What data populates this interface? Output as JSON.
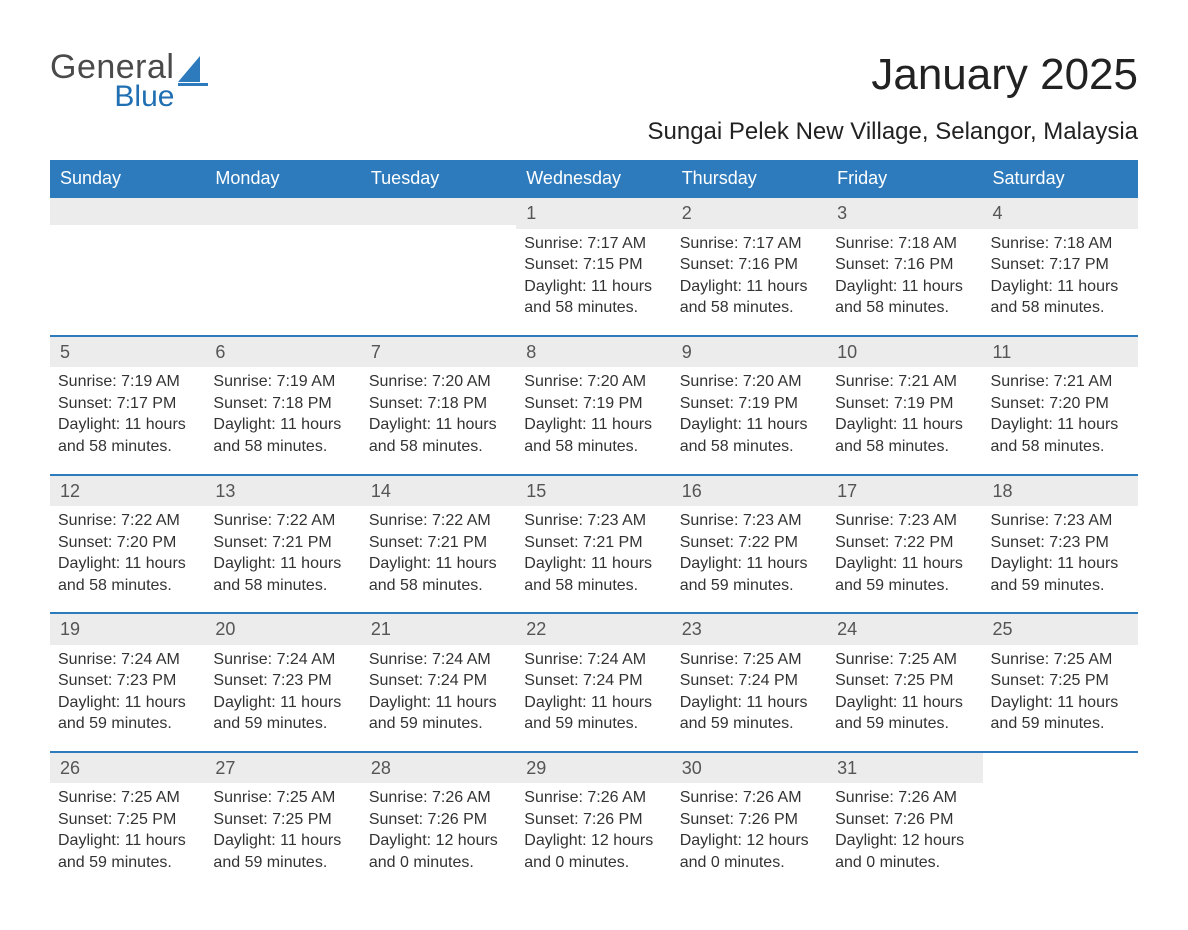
{
  "logo": {
    "general": "General",
    "blue": "Blue",
    "color_gray": "#4a4a4a",
    "color_blue": "#1f6fb2"
  },
  "title": "January 2025",
  "location": "Sungai Pelek New Village, Selangor, Malaysia",
  "colors": {
    "header_bg": "#2d7bbd",
    "header_text": "#ffffff",
    "strip_bg": "#ececec",
    "text": "#333333",
    "accent": "#2d7bbd"
  },
  "weekdays": [
    "Sunday",
    "Monday",
    "Tuesday",
    "Wednesday",
    "Thursday",
    "Friday",
    "Saturday"
  ],
  "labels": {
    "sunrise": "Sunrise: ",
    "sunset": "Sunset: ",
    "daylight": "Daylight: "
  },
  "weeks": [
    [
      null,
      null,
      null,
      {
        "n": "1",
        "rise": "7:17 AM",
        "set": "7:15 PM",
        "dl1": "11 hours",
        "dl2": "and 58 minutes."
      },
      {
        "n": "2",
        "rise": "7:17 AM",
        "set": "7:16 PM",
        "dl1": "11 hours",
        "dl2": "and 58 minutes."
      },
      {
        "n": "3",
        "rise": "7:18 AM",
        "set": "7:16 PM",
        "dl1": "11 hours",
        "dl2": "and 58 minutes."
      },
      {
        "n": "4",
        "rise": "7:18 AM",
        "set": "7:17 PM",
        "dl1": "11 hours",
        "dl2": "and 58 minutes."
      }
    ],
    [
      {
        "n": "5",
        "rise": "7:19 AM",
        "set": "7:17 PM",
        "dl1": "11 hours",
        "dl2": "and 58 minutes."
      },
      {
        "n": "6",
        "rise": "7:19 AM",
        "set": "7:18 PM",
        "dl1": "11 hours",
        "dl2": "and 58 minutes."
      },
      {
        "n": "7",
        "rise": "7:20 AM",
        "set": "7:18 PM",
        "dl1": "11 hours",
        "dl2": "and 58 minutes."
      },
      {
        "n": "8",
        "rise": "7:20 AM",
        "set": "7:19 PM",
        "dl1": "11 hours",
        "dl2": "and 58 minutes."
      },
      {
        "n": "9",
        "rise": "7:20 AM",
        "set": "7:19 PM",
        "dl1": "11 hours",
        "dl2": "and 58 minutes."
      },
      {
        "n": "10",
        "rise": "7:21 AM",
        "set": "7:19 PM",
        "dl1": "11 hours",
        "dl2": "and 58 minutes."
      },
      {
        "n": "11",
        "rise": "7:21 AM",
        "set": "7:20 PM",
        "dl1": "11 hours",
        "dl2": "and 58 minutes."
      }
    ],
    [
      {
        "n": "12",
        "rise": "7:22 AM",
        "set": "7:20 PM",
        "dl1": "11 hours",
        "dl2": "and 58 minutes."
      },
      {
        "n": "13",
        "rise": "7:22 AM",
        "set": "7:21 PM",
        "dl1": "11 hours",
        "dl2": "and 58 minutes."
      },
      {
        "n": "14",
        "rise": "7:22 AM",
        "set": "7:21 PM",
        "dl1": "11 hours",
        "dl2": "and 58 minutes."
      },
      {
        "n": "15",
        "rise": "7:23 AM",
        "set": "7:21 PM",
        "dl1": "11 hours",
        "dl2": "and 58 minutes."
      },
      {
        "n": "16",
        "rise": "7:23 AM",
        "set": "7:22 PM",
        "dl1": "11 hours",
        "dl2": "and 59 minutes."
      },
      {
        "n": "17",
        "rise": "7:23 AM",
        "set": "7:22 PM",
        "dl1": "11 hours",
        "dl2": "and 59 minutes."
      },
      {
        "n": "18",
        "rise": "7:23 AM",
        "set": "7:23 PM",
        "dl1": "11 hours",
        "dl2": "and 59 minutes."
      }
    ],
    [
      {
        "n": "19",
        "rise": "7:24 AM",
        "set": "7:23 PM",
        "dl1": "11 hours",
        "dl2": "and 59 minutes."
      },
      {
        "n": "20",
        "rise": "7:24 AM",
        "set": "7:23 PM",
        "dl1": "11 hours",
        "dl2": "and 59 minutes."
      },
      {
        "n": "21",
        "rise": "7:24 AM",
        "set": "7:24 PM",
        "dl1": "11 hours",
        "dl2": "and 59 minutes."
      },
      {
        "n": "22",
        "rise": "7:24 AM",
        "set": "7:24 PM",
        "dl1": "11 hours",
        "dl2": "and 59 minutes."
      },
      {
        "n": "23",
        "rise": "7:25 AM",
        "set": "7:24 PM",
        "dl1": "11 hours",
        "dl2": "and 59 minutes."
      },
      {
        "n": "24",
        "rise": "7:25 AM",
        "set": "7:25 PM",
        "dl1": "11 hours",
        "dl2": "and 59 minutes."
      },
      {
        "n": "25",
        "rise": "7:25 AM",
        "set": "7:25 PM",
        "dl1": "11 hours",
        "dl2": "and 59 minutes."
      }
    ],
    [
      {
        "n": "26",
        "rise": "7:25 AM",
        "set": "7:25 PM",
        "dl1": "11 hours",
        "dl2": "and 59 minutes."
      },
      {
        "n": "27",
        "rise": "7:25 AM",
        "set": "7:25 PM",
        "dl1": "11 hours",
        "dl2": "and 59 minutes."
      },
      {
        "n": "28",
        "rise": "7:26 AM",
        "set": "7:26 PM",
        "dl1": "12 hours",
        "dl2": "and 0 minutes."
      },
      {
        "n": "29",
        "rise": "7:26 AM",
        "set": "7:26 PM",
        "dl1": "12 hours",
        "dl2": "and 0 minutes."
      },
      {
        "n": "30",
        "rise": "7:26 AM",
        "set": "7:26 PM",
        "dl1": "12 hours",
        "dl2": "and 0 minutes."
      },
      {
        "n": "31",
        "rise": "7:26 AM",
        "set": "7:26 PM",
        "dl1": "12 hours",
        "dl2": "and 0 minutes."
      },
      null
    ]
  ]
}
